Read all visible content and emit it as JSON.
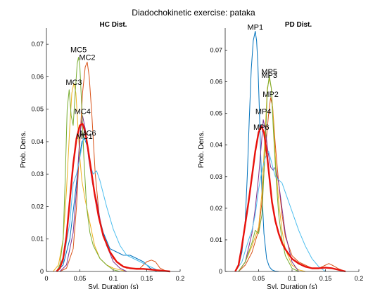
{
  "figure": {
    "title": "Diadochokinetic exercise: pataka"
  },
  "chart_data": [
    {
      "type": "line",
      "title": "HC Dist.",
      "xlabel": "Syl. Duration (s)",
      "ylabel": "Prob. Dens.",
      "xlim": [
        0,
        0.2
      ],
      "ylim": [
        0,
        0.075
      ],
      "xticks": [
        0,
        0.05,
        0.1,
        0.15,
        0.2
      ],
      "xtick_labels": [
        "0",
        "0.05",
        "0.1",
        "0.15",
        "0.2"
      ],
      "yticks": [
        0,
        0.01,
        0.02,
        0.03,
        0.04,
        0.05,
        0.06,
        0.07
      ],
      "ytick_labels": [
        "0",
        "0.01",
        "0.02",
        "0.03",
        "0.04",
        "0.05",
        "0.06",
        "0.07"
      ],
      "grid": false,
      "series": [
        {
          "name": "MC1",
          "color": "#0072bd",
          "width": 1,
          "x": [
            0.015,
            0.025,
            0.035,
            0.042,
            0.048,
            0.053,
            0.057,
            0.062,
            0.068,
            0.075,
            0.085,
            0.095,
            0.105,
            0.115,
            0.125,
            0.135,
            0.145,
            0.155,
            0.165
          ],
          "y": [
            0,
            0.002,
            0.01,
            0.022,
            0.033,
            0.04,
            0.041,
            0.038,
            0.03,
            0.02,
            0.012,
            0.007,
            0.006,
            0.005,
            0.005,
            0.004,
            0.003,
            0.001,
            0
          ]
        },
        {
          "name": "MC2",
          "color": "#d95319",
          "width": 1,
          "x": [
            0.02,
            0.03,
            0.04,
            0.045,
            0.05,
            0.054,
            0.058,
            0.061,
            0.064,
            0.068,
            0.073,
            0.08,
            0.09,
            0.1,
            0.11,
            0.12,
            0.13,
            0.14,
            0.15,
            0.157,
            0.163,
            0.17,
            0.18
          ],
          "y": [
            0,
            0.001,
            0.007,
            0.02,
            0.04,
            0.055,
            0.063,
            0.0645,
            0.06,
            0.048,
            0.03,
            0.015,
            0.008,
            0.004,
            0.002,
            0.001,
            0.001,
            0.001,
            0.003,
            0.0035,
            0.003,
            0.001,
            0
          ]
        },
        {
          "name": "MC3",
          "color": "#edb120",
          "width": 1,
          "x": [
            0.01,
            0.018,
            0.025,
            0.03,
            0.035,
            0.038,
            0.041,
            0.044,
            0.047,
            0.05,
            0.053,
            0.058,
            0.065,
            0.072,
            0.08,
            0.09,
            0.1,
            0.11,
            0.12
          ],
          "y": [
            0,
            0.002,
            0.01,
            0.025,
            0.045,
            0.055,
            0.058,
            0.055,
            0.045,
            0.035,
            0.028,
            0.022,
            0.015,
            0.008,
            0.004,
            0.002,
            0.001,
            0.0005,
            0
          ]
        },
        {
          "name": "MC4",
          "color": "#7e2f8e",
          "width": 1,
          "x": [
            0.02,
            0.03,
            0.04,
            0.045,
            0.05,
            0.054,
            0.058,
            0.063,
            0.069,
            0.075,
            0.082,
            0.09,
            0.1,
            0.11,
            0.12
          ],
          "y": [
            0,
            0.002,
            0.012,
            0.025,
            0.042,
            0.048,
            0.044,
            0.035,
            0.027,
            0.022,
            0.014,
            0.008,
            0.003,
            0.001,
            0
          ]
        },
        {
          "name": "MC5",
          "color": "#77ac30",
          "width": 1,
          "x": [
            0.015,
            0.02,
            0.025,
            0.028,
            0.031,
            0.034,
            0.037,
            0.04,
            0.043,
            0.046,
            0.048,
            0.05,
            0.053,
            0.056,
            0.06,
            0.065,
            0.07,
            0.08,
            0.09,
            0.1,
            0.11
          ],
          "y": [
            0,
            0.002,
            0.01,
            0.028,
            0.05,
            0.056,
            0.048,
            0.045,
            0.055,
            0.064,
            0.066,
            0.063,
            0.05,
            0.035,
            0.02,
            0.012,
            0.008,
            0.004,
            0.002,
            0.0005,
            0
          ]
        },
        {
          "name": "MC6",
          "color": "#4dbeee",
          "width": 1,
          "x": [
            0.015,
            0.025,
            0.035,
            0.04,
            0.045,
            0.05,
            0.055,
            0.06,
            0.065,
            0.07,
            0.075,
            0.08,
            0.09,
            0.1,
            0.11,
            0.12,
            0.13,
            0.14,
            0.15,
            0.16,
            0.17
          ],
          "y": [
            0,
            0.003,
            0.015,
            0.027,
            0.03,
            0.035,
            0.041,
            0.04,
            0.033,
            0.03,
            0.031,
            0.028,
            0.02,
            0.013,
            0.008,
            0.005,
            0.004,
            0.003,
            0.002,
            0.001,
            0
          ]
        },
        {
          "name": "",
          "color": "#e8120c",
          "width": 2.4,
          "x": [
            0.015,
            0.02,
            0.025,
            0.03,
            0.035,
            0.04,
            0.045,
            0.05,
            0.054,
            0.058,
            0.062,
            0.067,
            0.072,
            0.078,
            0.085,
            0.095,
            0.105,
            0.115,
            0.125,
            0.135,
            0.145,
            0.155,
            0.165,
            0.175,
            0.185
          ],
          "y": [
            0,
            0.001,
            0.004,
            0.011,
            0.022,
            0.033,
            0.041,
            0.045,
            0.0455,
            0.043,
            0.038,
            0.031,
            0.024,
            0.017,
            0.011,
            0.006,
            0.003,
            0.0015,
            0.001,
            0.0008,
            0.0008,
            0.0006,
            0.0004,
            0.0002,
            0
          ]
        }
      ],
      "annotations": [
        {
          "text": "MC5",
          "x": 0.048,
          "y": 0.0675
        },
        {
          "text": "MC2",
          "x": 0.061,
          "y": 0.0652
        },
        {
          "text": "MC3",
          "x": 0.041,
          "y": 0.0575
        },
        {
          "text": "MC4",
          "x": 0.054,
          "y": 0.0485
        },
        {
          "text": "MC6",
          "x": 0.062,
          "y": 0.0418
        },
        {
          "text": "MC1",
          "x": 0.057,
          "y": 0.0408
        }
      ]
    },
    {
      "type": "line",
      "title": "PD Dist.",
      "xlabel": "Syl. Duration (s)",
      "ylabel": "Prob. Dens.",
      "xlim": [
        0,
        0.2
      ],
      "ylim": [
        0,
        0.077
      ],
      "xticks": [
        0.05,
        0.1,
        0.15,
        0.2
      ],
      "xtick_labels": [
        "0.05",
        "0.1",
        "0.15",
        "0.2"
      ],
      "yticks": [
        0,
        0.01,
        0.02,
        0.03,
        0.04,
        0.05,
        0.06,
        0.07
      ],
      "ytick_labels": [
        "0",
        "0.01",
        "0.02",
        "0.03",
        "0.04",
        "0.05",
        "0.06",
        "0.07"
      ],
      "grid": false,
      "series": [
        {
          "name": "MP1",
          "color": "#0072bd",
          "width": 1,
          "x": [
            0.015,
            0.02,
            0.025,
            0.03,
            0.033,
            0.036,
            0.039,
            0.042,
            0.045,
            0.047,
            0.049,
            0.051,
            0.053,
            0.055,
            0.058,
            0.062,
            0.066,
            0.07,
            0.075,
            0.08
          ],
          "y": [
            0,
            0.002,
            0.006,
            0.016,
            0.03,
            0.048,
            0.064,
            0.073,
            0.076,
            0.073,
            0.065,
            0.052,
            0.038,
            0.025,
            0.012,
            0.004,
            0.0015,
            0.0005,
            0.0001,
            0
          ]
        },
        {
          "name": "MP2",
          "color": "#d95319",
          "width": 1,
          "x": [
            0.02,
            0.03,
            0.04,
            0.05,
            0.055,
            0.06,
            0.065,
            0.068,
            0.071,
            0.075,
            0.08,
            0.085,
            0.09,
            0.1,
            0.11,
            0.12,
            0.13,
            0.14,
            0.15,
            0.155,
            0.16,
            0.17,
            0.18
          ],
          "y": [
            0,
            0.002,
            0.006,
            0.013,
            0.022,
            0.038,
            0.05,
            0.055,
            0.052,
            0.04,
            0.028,
            0.018,
            0.011,
            0.005,
            0.003,
            0.002,
            0.001,
            0.001,
            0.002,
            0.0025,
            0.002,
            0.0008,
            0
          ]
        },
        {
          "name": "MP3",
          "color": "#edb120",
          "width": 1,
          "x": [
            0.02,
            0.03,
            0.04,
            0.05,
            0.055,
            0.06,
            0.063,
            0.066,
            0.069,
            0.072,
            0.076,
            0.08,
            0.085,
            0.09,
            0.1,
            0.11,
            0.12
          ],
          "y": [
            0,
            0.003,
            0.008,
            0.014,
            0.025,
            0.045,
            0.058,
            0.061,
            0.058,
            0.048,
            0.033,
            0.022,
            0.013,
            0.007,
            0.002,
            0.0005,
            0
          ]
        },
        {
          "name": "MP4",
          "color": "#7e2f8e",
          "width": 1,
          "x": [
            0.02,
            0.03,
            0.04,
            0.045,
            0.05,
            0.054,
            0.057,
            0.06,
            0.064,
            0.068,
            0.072,
            0.075,
            0.08,
            0.085,
            0.09,
            0.1,
            0.11
          ],
          "y": [
            0,
            0.003,
            0.012,
            0.02,
            0.03,
            0.04,
            0.048,
            0.045,
            0.038,
            0.033,
            0.032,
            0.033,
            0.028,
            0.02,
            0.012,
            0.003,
            0
          ]
        },
        {
          "name": "MP5",
          "color": "#77ac30",
          "width": 1,
          "x": [
            0.02,
            0.03,
            0.04,
            0.045,
            0.05,
            0.055,
            0.06,
            0.063,
            0.066,
            0.069,
            0.072,
            0.076,
            0.08,
            0.085,
            0.09,
            0.1,
            0.11
          ],
          "y": [
            0,
            0.003,
            0.009,
            0.013,
            0.012,
            0.018,
            0.04,
            0.057,
            0.062,
            0.058,
            0.045,
            0.03,
            0.018,
            0.01,
            0.005,
            0.001,
            0
          ]
        },
        {
          "name": "MP6",
          "color": "#4dbeee",
          "width": 1,
          "x": [
            0.015,
            0.025,
            0.035,
            0.04,
            0.045,
            0.05,
            0.055,
            0.06,
            0.065,
            0.07,
            0.075,
            0.08,
            0.085,
            0.09,
            0.1,
            0.11,
            0.12,
            0.13,
            0.14,
            0.15
          ],
          "y": [
            0,
            0.003,
            0.01,
            0.013,
            0.018,
            0.026,
            0.032,
            0.036,
            0.038,
            0.034,
            0.03,
            0.029,
            0.028,
            0.025,
            0.019,
            0.013,
            0.008,
            0.004,
            0.0015,
            0
          ]
        },
        {
          "name": "",
          "color": "#e8120c",
          "width": 2.4,
          "x": [
            0.015,
            0.02,
            0.025,
            0.03,
            0.035,
            0.04,
            0.045,
            0.05,
            0.054,
            0.058,
            0.062,
            0.066,
            0.07,
            0.075,
            0.08,
            0.085,
            0.09,
            0.1,
            0.11,
            0.12,
            0.13,
            0.14,
            0.15,
            0.16,
            0.17,
            0.18
          ],
          "y": [
            0,
            0.002,
            0.008,
            0.015,
            0.022,
            0.03,
            0.038,
            0.044,
            0.046,
            0.044,
            0.038,
            0.03,
            0.022,
            0.016,
            0.012,
            0.009,
            0.007,
            0.004,
            0.0025,
            0.0015,
            0.001,
            0.001,
            0.0012,
            0.001,
            0.0005,
            0
          ]
        }
      ],
      "annotations": [
        {
          "text": "MP1",
          "x": 0.045,
          "y": 0.0765
        },
        {
          "text": "MP5",
          "x": 0.066,
          "y": 0.0623
        },
        {
          "text": "MP3",
          "x": 0.066,
          "y": 0.0612
        },
        {
          "text": "MP2",
          "x": 0.068,
          "y": 0.0553
        },
        {
          "text": "MP4",
          "x": 0.057,
          "y": 0.0498
        },
        {
          "text": "MP6",
          "x": 0.054,
          "y": 0.0448
        }
      ]
    }
  ]
}
